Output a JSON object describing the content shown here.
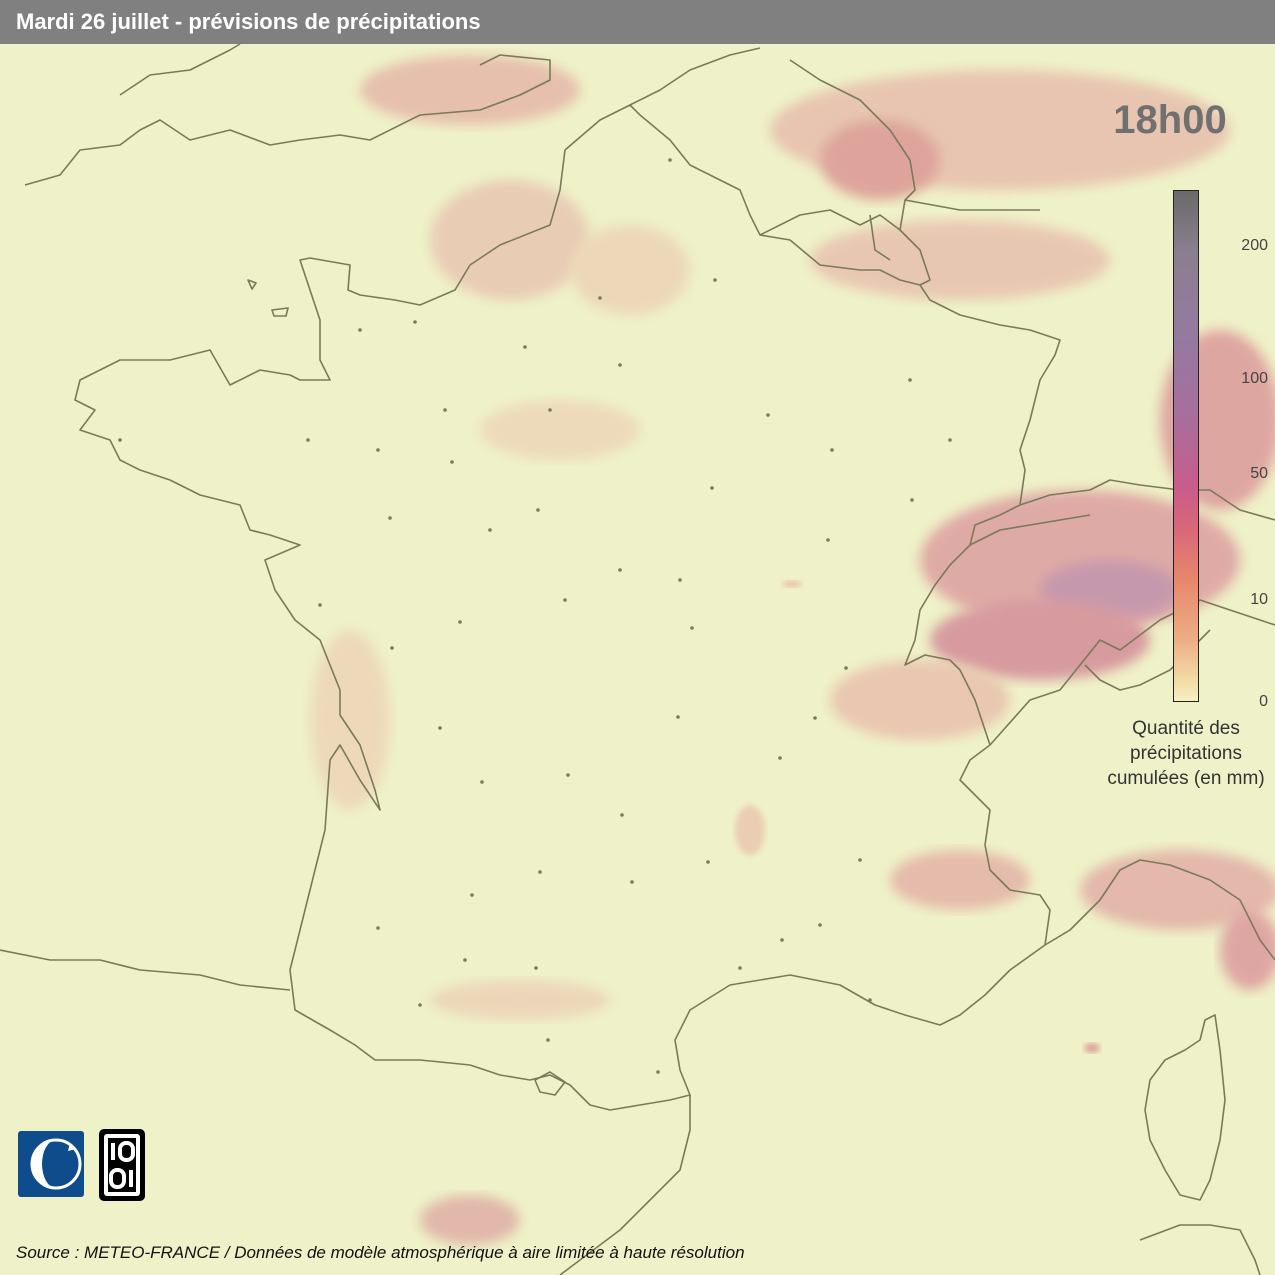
{
  "header": {
    "title": "Mardi 26 juillet - prévisions de précipitations"
  },
  "map": {
    "time_label": "18h00",
    "legend": {
      "ticks": [
        "200",
        "100",
        "50",
        "10",
        "0"
      ],
      "caption_lines": [
        "Quantité des",
        "précipitations",
        "cumulées (en mm)"
      ],
      "colors": [
        "#6a6a6a",
        "#957aa0",
        "#c85c8c",
        "#e7866c",
        "#f6eec2"
      ]
    },
    "background_color": "#eff2c8",
    "border_color": "#7a7a5a"
  },
  "footer": {
    "source": "Source : METEO-FRANCE / Données de modèle atmosphérique à aire limitée à haute résolution"
  },
  "logos": [
    "meteo-france-logo",
    "data-logo"
  ]
}
